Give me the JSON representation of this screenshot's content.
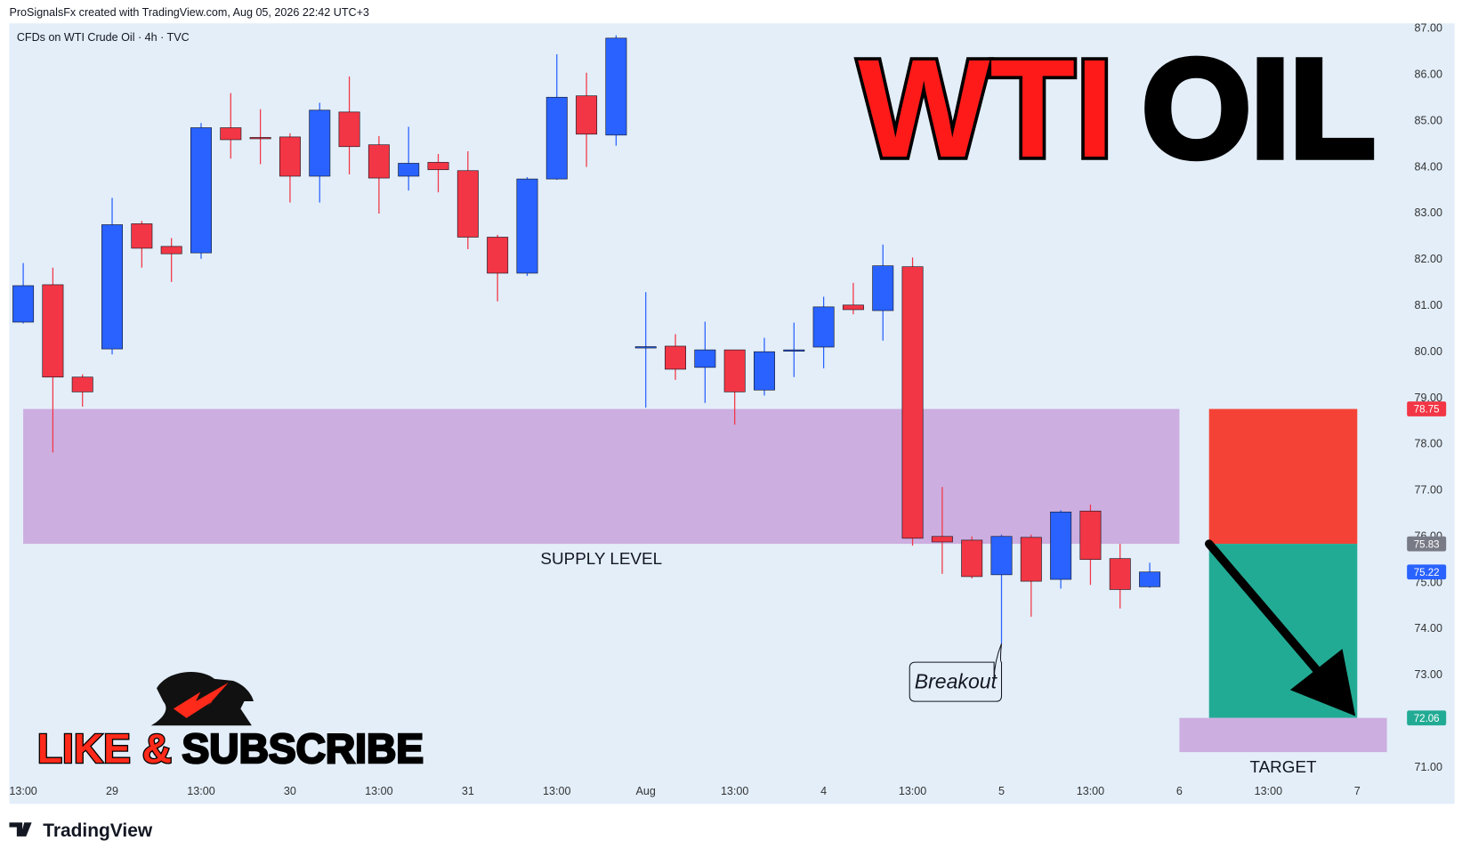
{
  "chart_data": {
    "type": "candlestick",
    "header": "ProSignalsFx created with TradingView.com, Aug 05, 2026 22:42 UTC+3",
    "symbol": "CFDs on WTI Crude Oil · 4h · TVC",
    "title_red": "WTI",
    "title_black": "OIL",
    "open": [
      80.63,
      81.44,
      79.44,
      80.05,
      82.76,
      82.27,
      82.13,
      84.84,
      84.63,
      84.64,
      83.79,
      85.18,
      84.47,
      83.79,
      84.09,
      83.91,
      82.47,
      81.69,
      83.73,
      85.53,
      84.68,
      80.1,
      80.11,
      79.65,
      80.03,
      79.16,
      80.0,
      80.09,
      81.0,
      80.88,
      81.83,
      75.99,
      75.91,
      75.16,
      75.97,
      75.06,
      76.54,
      75.51,
      74.9
    ],
    "high": [
      81.91,
      81.81,
      79.5,
      83.32,
      82.82,
      82.45,
      84.94,
      85.59,
      85.24,
      84.72,
      85.38,
      85.95,
      84.66,
      84.86,
      84.27,
      84.33,
      82.52,
      83.77,
      86.43,
      86.03,
      86.84,
      81.28,
      80.37,
      80.64,
      80.03,
      80.29,
      80.62,
      81.18,
      81.48,
      82.31,
      82.03,
      77.06,
      75.99,
      76.03,
      76.03,
      76.56,
      76.68,
      75.83,
      75.42
    ],
    "low": [
      80.6,
      77.81,
      78.8,
      79.93,
      81.81,
      81.5,
      82.0,
      84.17,
      84.05,
      83.22,
      83.22,
      83.83,
      82.98,
      83.48,
      83.44,
      82.21,
      81.08,
      81.63,
      83.71,
      83.99,
      84.45,
      78.78,
      79.38,
      78.88,
      78.41,
      79.04,
      79.44,
      79.63,
      80.8,
      80.23,
      75.79,
      75.18,
      75.08,
      73.67,
      74.25,
      74.86,
      74.94,
      74.43,
      74.88
    ],
    "close": [
      81.42,
      79.44,
      79.12,
      82.74,
      82.23,
      82.11,
      84.84,
      84.58,
      84.6,
      83.79,
      85.22,
      84.43,
      83.75,
      84.07,
      83.93,
      82.47,
      81.69,
      83.73,
      85.5,
      84.7,
      86.78,
      80.1,
      79.61,
      80.03,
      79.12,
      79.99,
      80.03,
      80.96,
      80.9,
      81.85,
      75.95,
      75.87,
      75.12,
      75.99,
      75.02,
      76.52,
      75.49,
      74.84,
      75.22
    ],
    "up_color": "#2962ff",
    "down_color": "#f23645",
    "ylim": [
      70.2,
      87.1
    ],
    "yticks": [
      {
        "value": 71,
        "label": "71.00"
      },
      {
        "value": 72,
        "label": "72.00"
      },
      {
        "value": 73,
        "label": "73.00"
      },
      {
        "value": 74,
        "label": "74.00"
      },
      {
        "value": 75,
        "label": "75.00"
      },
      {
        "value": 76,
        "label": "76.00"
      },
      {
        "value": 77,
        "label": "77.00"
      },
      {
        "value": 78,
        "label": "78.00"
      },
      {
        "value": 79,
        "label": "79.00"
      },
      {
        "value": 80,
        "label": "80.00"
      },
      {
        "value": 81,
        "label": "81.00"
      },
      {
        "value": 82,
        "label": "82.00"
      },
      {
        "value": 83,
        "label": "83.00"
      },
      {
        "value": 84,
        "label": "84.00"
      },
      {
        "value": 85,
        "label": "85.00"
      },
      {
        "value": 86,
        "label": "86.00"
      },
      {
        "value": 87,
        "label": "87.00"
      }
    ],
    "xlim": [
      -0.5,
      46.3
    ],
    "xticks": [
      {
        "value": 0,
        "label": "13:00"
      },
      {
        "value": 3,
        "label": "29"
      },
      {
        "value": 6,
        "label": "13:00"
      },
      {
        "value": 9,
        "label": "30"
      },
      {
        "value": 12,
        "label": "13:00"
      },
      {
        "value": 15,
        "label": "31"
      },
      {
        "value": 18,
        "label": "13:00"
      },
      {
        "value": 21,
        "label": "Aug"
      },
      {
        "value": 24,
        "label": "13:00"
      },
      {
        "value": 27,
        "label": "4"
      },
      {
        "value": 30,
        "label": "13:00"
      },
      {
        "value": 33,
        "label": "5"
      },
      {
        "value": 36,
        "label": "13:00"
      },
      {
        "value": 39,
        "label": "6"
      },
      {
        "value": 42,
        "label": "13:00"
      },
      {
        "value": 45,
        "label": "7"
      }
    ],
    "supply_zone": {
      "label": "SUPPLY LEVEL",
      "top": 78.75,
      "bottom": 75.83
    },
    "position": {
      "stop": 78.75,
      "entry": 75.83,
      "target": 72.06
    },
    "target_zone": {
      "label": "TARGET",
      "top": 72.06,
      "bottom": 71.32
    },
    "breakout": {
      "label": "Breakout"
    },
    "price_labels": [
      {
        "value": 78.75,
        "color": "#f23645"
      },
      {
        "value": 75.83,
        "color": "#787b86"
      },
      {
        "value": 75.22,
        "color": "#2962ff"
      },
      {
        "value": 72.06,
        "color": "#22ab94"
      }
    ],
    "cta_red": "LIKE &",
    "cta_black": "SUBSCRIBE",
    "footer": "TradingView"
  }
}
